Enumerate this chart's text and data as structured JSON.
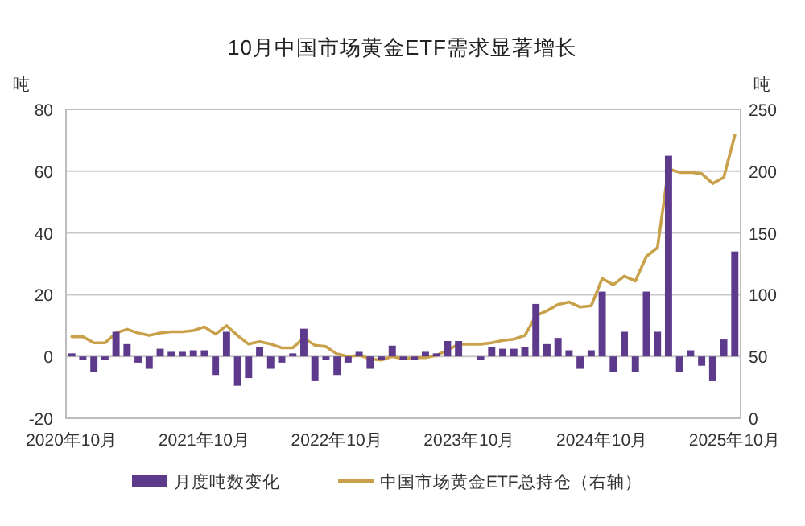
{
  "chart_data": {
    "type": "bar",
    "title": "10月中国市场黄金ETF需求显著增长",
    "ylabel": "吨",
    "y2label": "吨",
    "categories": [
      "2020年10月",
      null,
      null,
      null,
      null,
      null,
      null,
      null,
      null,
      null,
      null,
      null,
      "2021年10月",
      null,
      null,
      null,
      null,
      null,
      null,
      null,
      null,
      null,
      null,
      null,
      "2022年10月",
      null,
      null,
      null,
      null,
      null,
      null,
      null,
      null,
      null,
      null,
      null,
      "2023年10月",
      null,
      null,
      null,
      null,
      null,
      null,
      null,
      null,
      null,
      null,
      null,
      "2024年10月",
      null,
      null,
      null,
      null,
      null,
      null,
      null,
      null,
      null,
      null,
      null,
      "2025年10月"
    ],
    "series": [
      {
        "name": "月度吨数变化",
        "color": "#5e3a8c",
        "values": [
          1,
          -1,
          -5,
          -1,
          8,
          4,
          -2,
          -4,
          2.5,
          1.5,
          1.5,
          2,
          2,
          -6,
          8,
          -9.5,
          -7,
          3,
          -4,
          -2,
          1,
          9,
          -8,
          -1,
          -6,
          -2,
          1.5,
          -4,
          -1,
          3.5,
          -1,
          -1,
          1.5,
          1,
          5,
          5,
          0,
          -1,
          3,
          2.5,
          2.5,
          3,
          17,
          4,
          6,
          2,
          -4,
          2,
          21,
          -5,
          8,
          -5,
          21,
          8,
          65,
          -5,
          2,
          -3,
          -8,
          5.5,
          34
        ]
      },
      {
        "name": "中国市场黄金ETF总持仓（右轴）",
        "type": "line",
        "axis": "y2",
        "color": "#c9a14a",
        "values": [
          66,
          66,
          61,
          61,
          69,
          72,
          69,
          67,
          69,
          70,
          70,
          71,
          74,
          68,
          75,
          67,
          60,
          62,
          60,
          57,
          57,
          65,
          59,
          58,
          52,
          50,
          51,
          48,
          47,
          50,
          48,
          49,
          49,
          51,
          55,
          60,
          60,
          60,
          61,
          63,
          64,
          67,
          83,
          87,
          92,
          94,
          90,
          91,
          113,
          108,
          115,
          111,
          131,
          138,
          202,
          199,
          199,
          198,
          190,
          195,
          229
        ]
      }
    ],
    "ylim": [
      -20,
      80
    ],
    "yticks": [
      -20,
      0,
      20,
      40,
      60,
      80
    ],
    "y2lim": [
      0,
      250
    ],
    "y2ticks": [
      0,
      50,
      100,
      150,
      200,
      250
    ],
    "grid": "y",
    "legend": "bottom"
  }
}
